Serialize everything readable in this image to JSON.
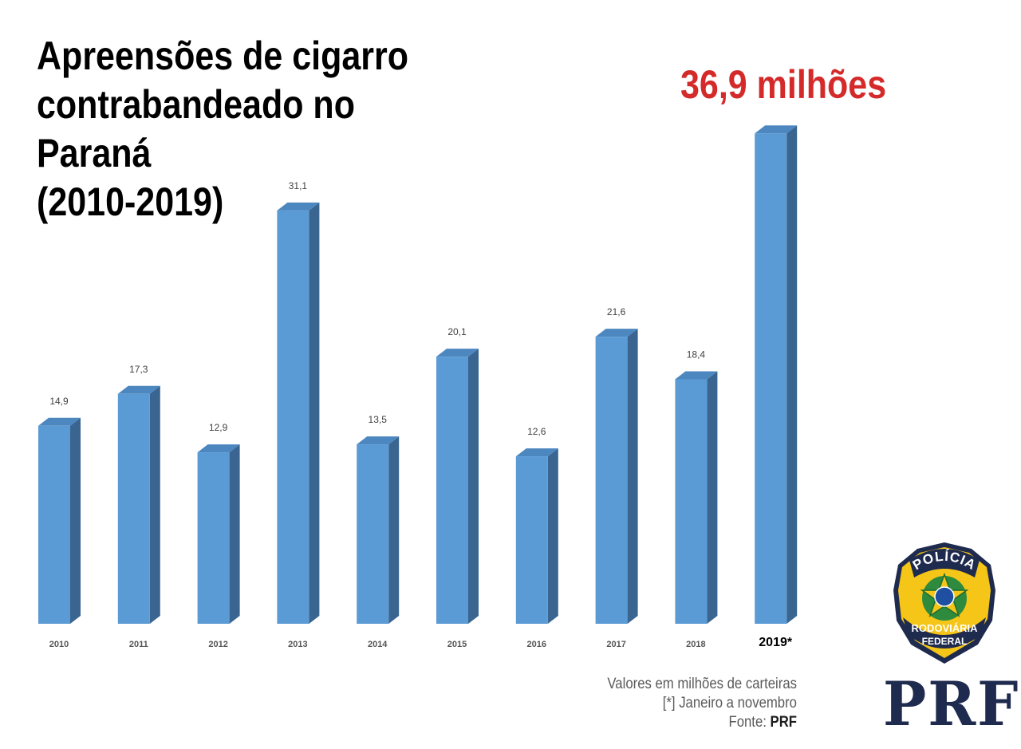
{
  "title": "Apreensões de cigarro\ncontrabandeado no Paraná\n(2010-2019)",
  "highlight": "36,9 milhões",
  "notes": {
    "units": "Valores em milhões de carteiras",
    "footnote": "[*] Janeiro a novembro",
    "source_prefix": "Fonte: ",
    "source_name": "PRF"
  },
  "logo": {
    "seal_top": "POLÍCIA",
    "seal_bottom_1": "RODOVIÁRIA",
    "seal_bottom_2": "FEDERAL",
    "brand": "PRF"
  },
  "colors": {
    "bar_front": "#5b9bd5",
    "bar_top": "#4d87c0",
    "bar_side": "#3a6590",
    "highlight": "#d42a2a",
    "brand_navy": "#1f2b4e",
    "seal_gold": "#f5c518"
  },
  "chart_data": {
    "type": "bar",
    "categories": [
      "2010",
      "2011",
      "2012",
      "2013",
      "2014",
      "2015",
      "2016",
      "2017",
      "2018",
      "2019*"
    ],
    "values": [
      14.9,
      17.3,
      12.9,
      31.1,
      13.5,
      20.1,
      12.6,
      21.6,
      18.4,
      36.9
    ],
    "data_labels": [
      "14,9",
      "17,3",
      "12,9",
      "31,1",
      "13,5",
      "20,1",
      "12,6",
      "21,6",
      "18,4",
      ""
    ],
    "ylabel": "",
    "xlabel": "",
    "ylim": [
      0,
      37
    ],
    "grid": false,
    "legend": "none",
    "style": "3d-column"
  }
}
